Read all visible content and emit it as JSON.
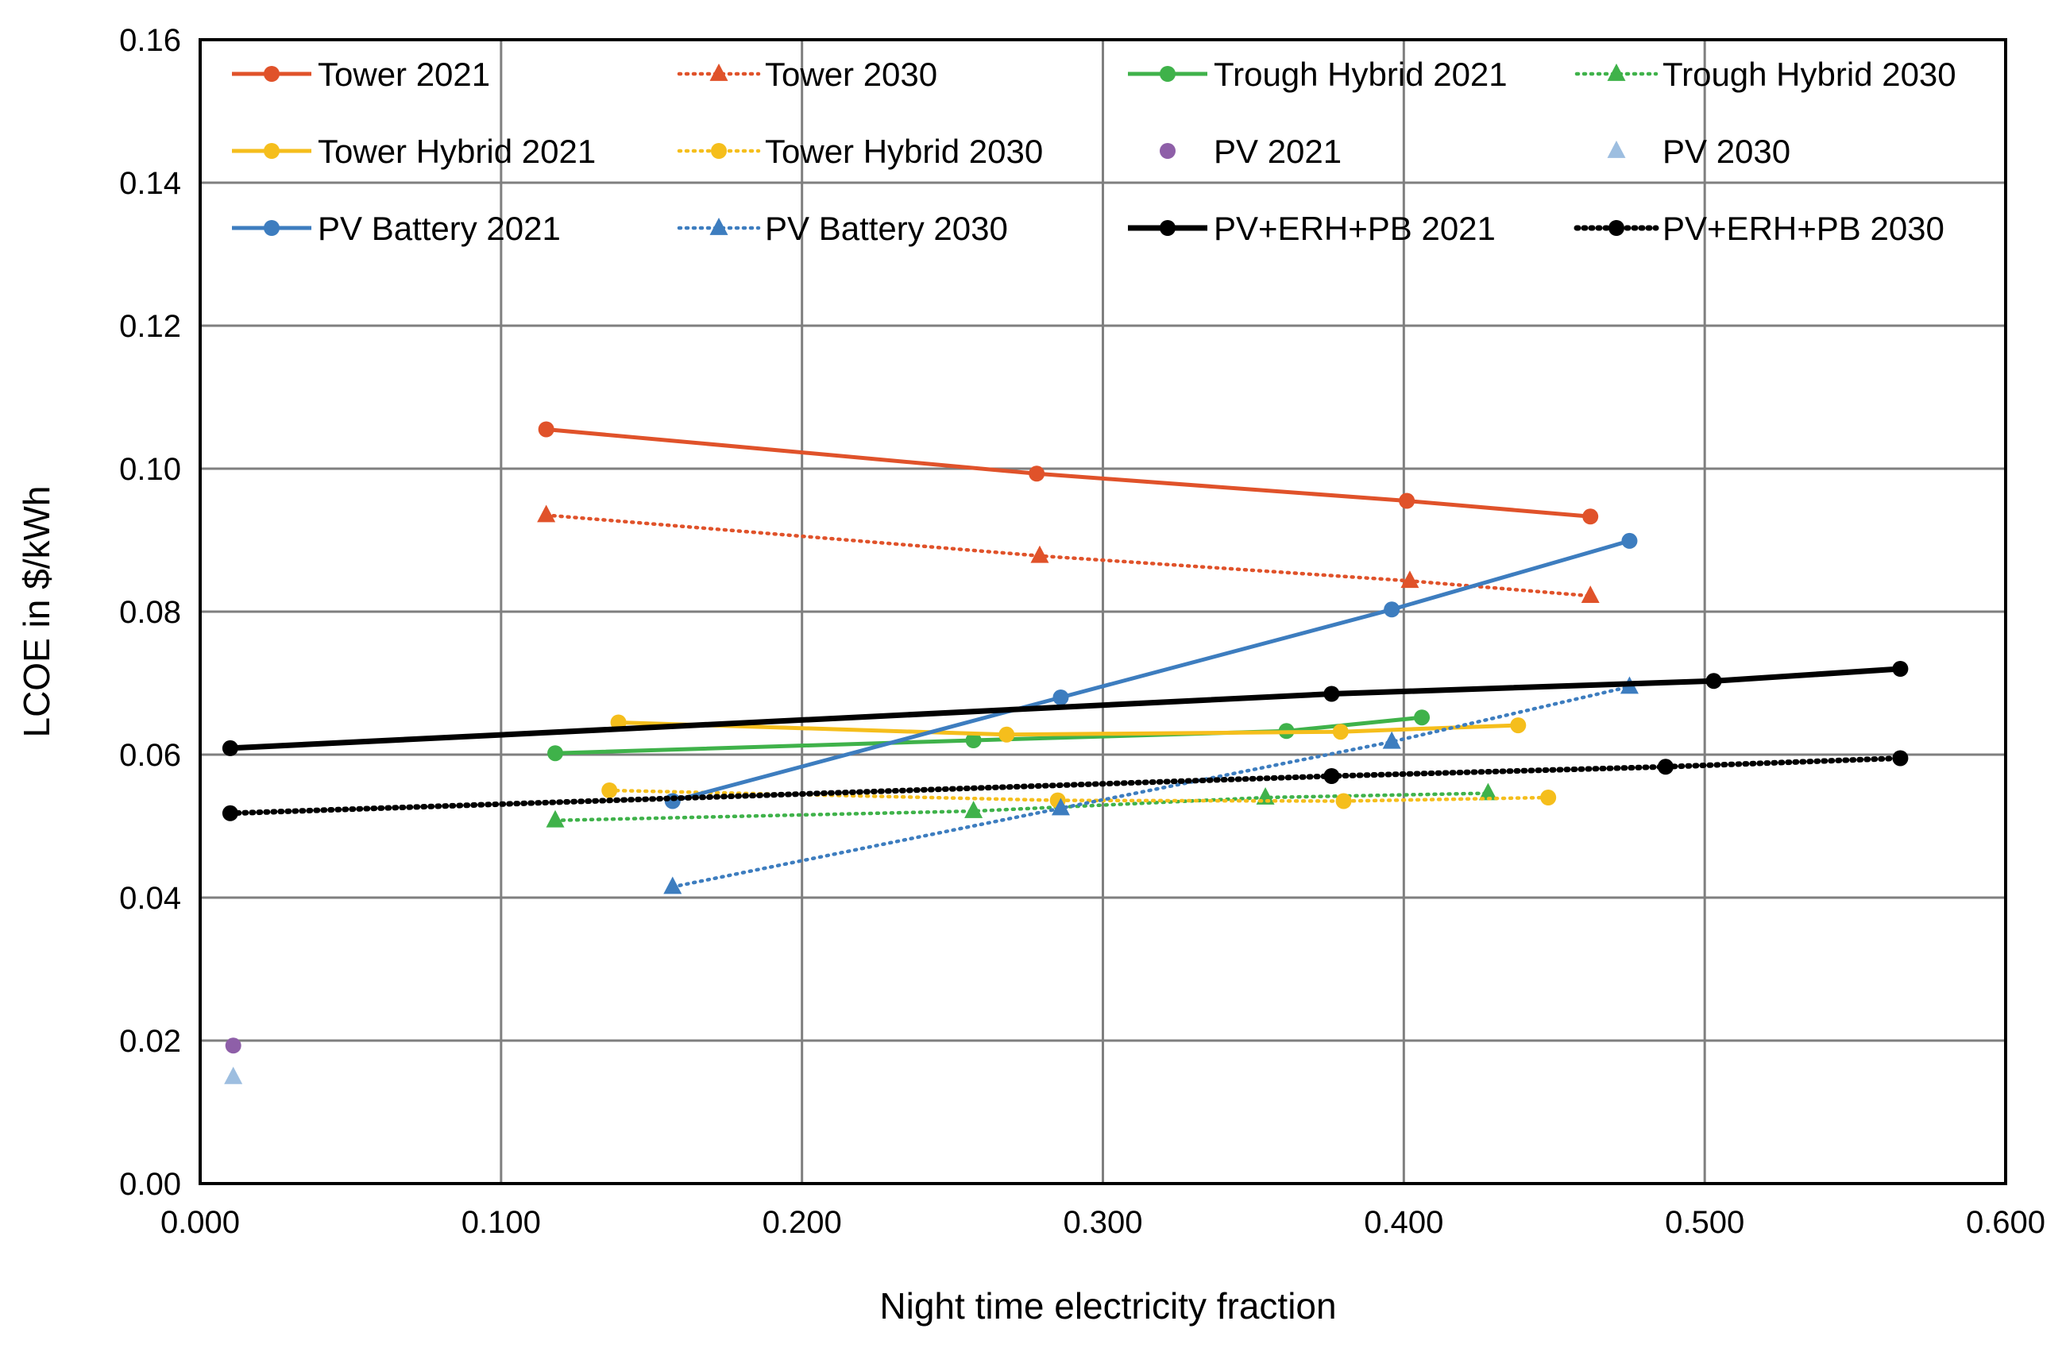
{
  "chart_data": {
    "type": "line",
    "title": "",
    "xlabel": "Night time electricity fraction",
    "ylabel": "LCOE in $/kWh",
    "xlim": [
      0,
      0.6
    ],
    "ylim": [
      0,
      0.16
    ],
    "grid": true,
    "x_ticks": [
      0,
      0.1,
      0.2,
      0.3,
      0.4,
      0.5,
      0.6
    ],
    "x_tick_labels": [
      "0.000",
      "0.100",
      "0.200",
      "0.300",
      "0.400",
      "0.500",
      "0.600"
    ],
    "y_ticks": [
      0,
      0.02,
      0.04,
      0.06,
      0.08,
      0.1,
      0.12,
      0.14,
      0.16
    ],
    "y_tick_labels": [
      "0.00",
      "0.02",
      "0.04",
      "0.06",
      "0.08",
      "0.10",
      "0.12",
      "0.14",
      "0.16"
    ],
    "legend_position": "top, inside plot, 4 columns",
    "series": [
      {
        "name": "Tower 2021",
        "color": "#E0522A",
        "style": "solid",
        "marker": "circle",
        "x": [
          0.115,
          0.278,
          0.401,
          0.462
        ],
        "y": [
          0.1055,
          0.0993,
          0.0955,
          0.0933
        ]
      },
      {
        "name": "Tower 2030",
        "color": "#E0522A",
        "style": "dotted",
        "marker": "triangle",
        "x": [
          0.115,
          0.279,
          0.402,
          0.462
        ],
        "y": [
          0.0935,
          0.0878,
          0.0843,
          0.0822
        ]
      },
      {
        "name": "Trough Hybrid 2021",
        "color": "#3FB24A",
        "style": "solid",
        "marker": "circle",
        "x": [
          0.118,
          0.257,
          0.361,
          0.406
        ],
        "y": [
          0.0602,
          0.062,
          0.0633,
          0.0652
        ]
      },
      {
        "name": "Trough Hybrid 2030",
        "color": "#3FB24A",
        "style": "dotted",
        "marker": "triangle",
        "x": [
          0.118,
          0.257,
          0.354,
          0.428
        ],
        "y": [
          0.0508,
          0.0521,
          0.054,
          0.0546
        ]
      },
      {
        "name": "Tower Hybrid 2021",
        "color": "#F5BE1C",
        "style": "solid",
        "marker": "circle",
        "x": [
          0.139,
          0.268,
          0.379,
          0.438
        ],
        "y": [
          0.0645,
          0.0628,
          0.0632,
          0.0641
        ]
      },
      {
        "name": "Tower Hybrid 2030",
        "color": "#F5BE1C",
        "style": "dotted",
        "marker": "circle",
        "x": [
          0.136,
          0.285,
          0.38,
          0.448
        ],
        "y": [
          0.055,
          0.0536,
          0.0535,
          0.054
        ]
      },
      {
        "name": "PV 2021",
        "color": "#8E5FA8",
        "style": "none",
        "marker": "circle",
        "x": [
          0.011
        ],
        "y": [
          0.0193
        ]
      },
      {
        "name": "PV 2030",
        "color": "#9DBEE0",
        "style": "none",
        "marker": "triangle",
        "x": [
          0.011
        ],
        "y": [
          0.0149
        ]
      },
      {
        "name": "PV Battery 2021",
        "color": "#3D7DBF",
        "style": "solid",
        "marker": "circle",
        "x": [
          0.157,
          0.286,
          0.396,
          0.475
        ],
        "y": [
          0.0535,
          0.068,
          0.0803,
          0.0899
        ]
      },
      {
        "name": "PV Battery 2030",
        "color": "#3D7DBF",
        "style": "dotted",
        "marker": "triangle",
        "x": [
          0.157,
          0.286,
          0.396,
          0.475
        ],
        "y": [
          0.0415,
          0.0525,
          0.0618,
          0.0695
        ]
      },
      {
        "name": "PV+ERH+PB 2021",
        "color": "#000000",
        "style": "solid",
        "marker": "circle",
        "x": [
          0.01,
          0.376,
          0.503,
          0.565
        ],
        "y": [
          0.0609,
          0.0685,
          0.0703,
          0.072
        ]
      },
      {
        "name": "PV+ERH+PB 2030",
        "color": "#000000",
        "style": "dotted",
        "marker": "circle",
        "x": [
          0.01,
          0.376,
          0.487,
          0.565
        ],
        "y": [
          0.0518,
          0.057,
          0.0583,
          0.0595
        ]
      }
    ]
  }
}
